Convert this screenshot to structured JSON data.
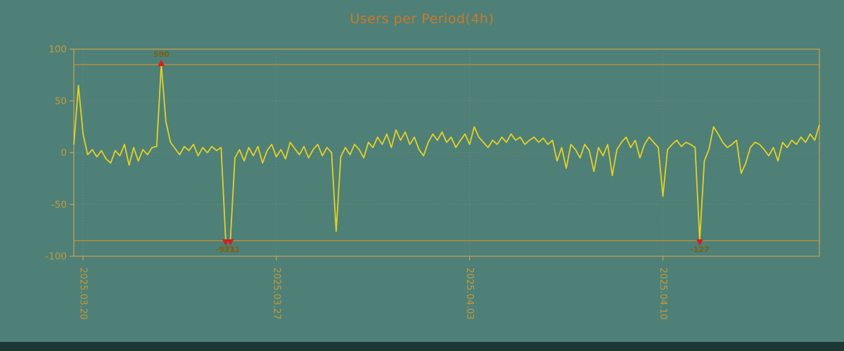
{
  "window": {
    "background": "#4e8078",
    "bottom_bar_color": "#1d3834"
  },
  "chart_data": {
    "type": "line",
    "title": "Users per Period(4h)",
    "title_color": "#c97a28",
    "xlabel": "",
    "ylabel": "",
    "ylim": [
      -100,
      100
    ],
    "yticks": [
      -100,
      -50,
      0,
      50,
      100
    ],
    "xtick_labels": [
      "2025.03.20",
      "2025.03.27",
      "2025.04.03",
      "2025.04.10"
    ],
    "xtick_positions": [
      2,
      44,
      86,
      128
    ],
    "clip_limits": [
      -85,
      85
    ],
    "grid": true,
    "legend": "none",
    "colors": {
      "axis": "#c8a24e",
      "tick_label": "#bf9b3a",
      "grid": "#c8a24e",
      "limit_line": "#c8912d",
      "marker": "#d31f1f",
      "annotation": "#7f5f10"
    },
    "series": [
      {
        "name": "users",
        "color": "#e5d122",
        "values": [
          8,
          65,
          18,
          -2,
          3,
          -4,
          2,
          -6,
          -10,
          2,
          -3,
          8,
          -12,
          5,
          -8,
          3,
          -2,
          5,
          6,
          590,
          30,
          10,
          4,
          -2,
          6,
          2,
          8,
          -3,
          5,
          0,
          6,
          2,
          5,
          -971,
          -311,
          -5,
          3,
          -8,
          5,
          -3,
          6,
          -10,
          2,
          8,
          -4,
          3,
          -6,
          10,
          4,
          -2,
          6,
          -5,
          3,
          8,
          -3,
          5,
          0,
          -76,
          -4,
          5,
          -2,
          8,
          3,
          -5,
          10,
          5,
          15,
          8,
          18,
          5,
          22,
          12,
          20,
          8,
          15,
          3,
          -3,
          10,
          18,
          12,
          20,
          10,
          15,
          5,
          12,
          18,
          8,
          25,
          15,
          10,
          5,
          12,
          8,
          15,
          10,
          18,
          12,
          15,
          8,
          12,
          15,
          10,
          14,
          8,
          12,
          -8,
          5,
          -15,
          8,
          3,
          -5,
          8,
          2,
          -18,
          5,
          -3,
          8,
          -22,
          3,
          10,
          15,
          5,
          12,
          -5,
          8,
          15,
          10,
          5,
          -42,
          3,
          8,
          12,
          6,
          10,
          8,
          5,
          -127,
          -8,
          3,
          25,
          18,
          10,
          5,
          8,
          12,
          -20,
          -10,
          5,
          10,
          8,
          3,
          -3,
          5,
          -8,
          10,
          5,
          12,
          8,
          15,
          10,
          18,
          12,
          27
        ]
      }
    ],
    "annotations": [
      {
        "text": "590",
        "index": 19,
        "position": "above"
      },
      {
        "text": "-971",
        "index": 33,
        "position": "below"
      },
      {
        "text": "-311",
        "index": 34,
        "position": "below"
      },
      {
        "text": "-127",
        "index": 136,
        "position": "below"
      }
    ]
  }
}
